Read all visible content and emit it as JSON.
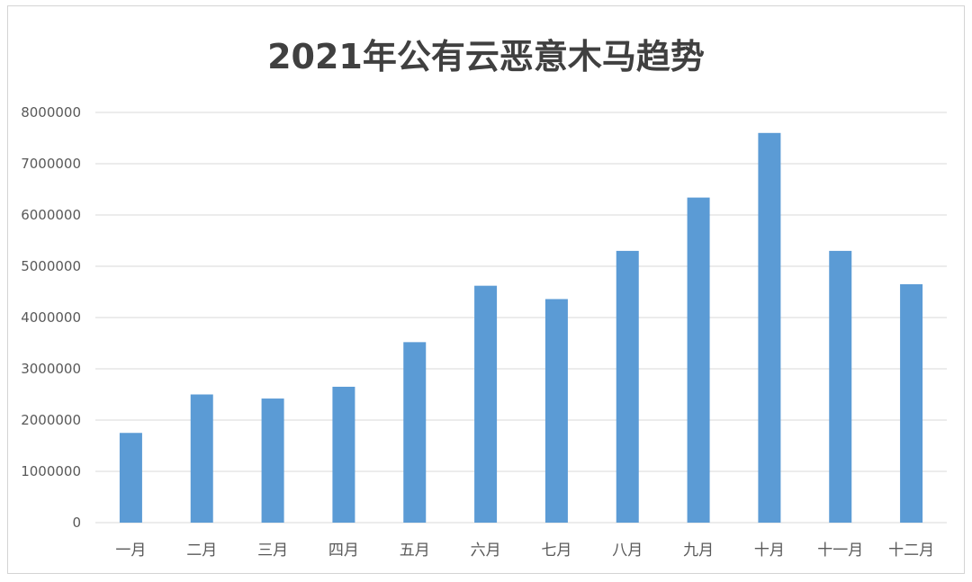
{
  "chart_data": {
    "type": "bar",
    "title": "2021年公有云恶意木马趋势",
    "xlabel": "",
    "ylabel": "",
    "categories": [
      "一月",
      "二月",
      "三月",
      "四月",
      "五月",
      "六月",
      "七月",
      "八月",
      "九月",
      "十月",
      "十一月",
      "十二月"
    ],
    "values": [
      1750000,
      2500000,
      2420000,
      2650000,
      3520000,
      4620000,
      4360000,
      5300000,
      6340000,
      7600000,
      5300000,
      4650000
    ],
    "ylim": [
      0,
      8000000
    ],
    "yticks": [
      "0",
      "1000000",
      "2000000",
      "3000000",
      "4000000",
      "5000000",
      "6000000",
      "7000000",
      "8000000"
    ],
    "grid": true,
    "legend": "none",
    "bar_color": "#5B9BD5"
  }
}
